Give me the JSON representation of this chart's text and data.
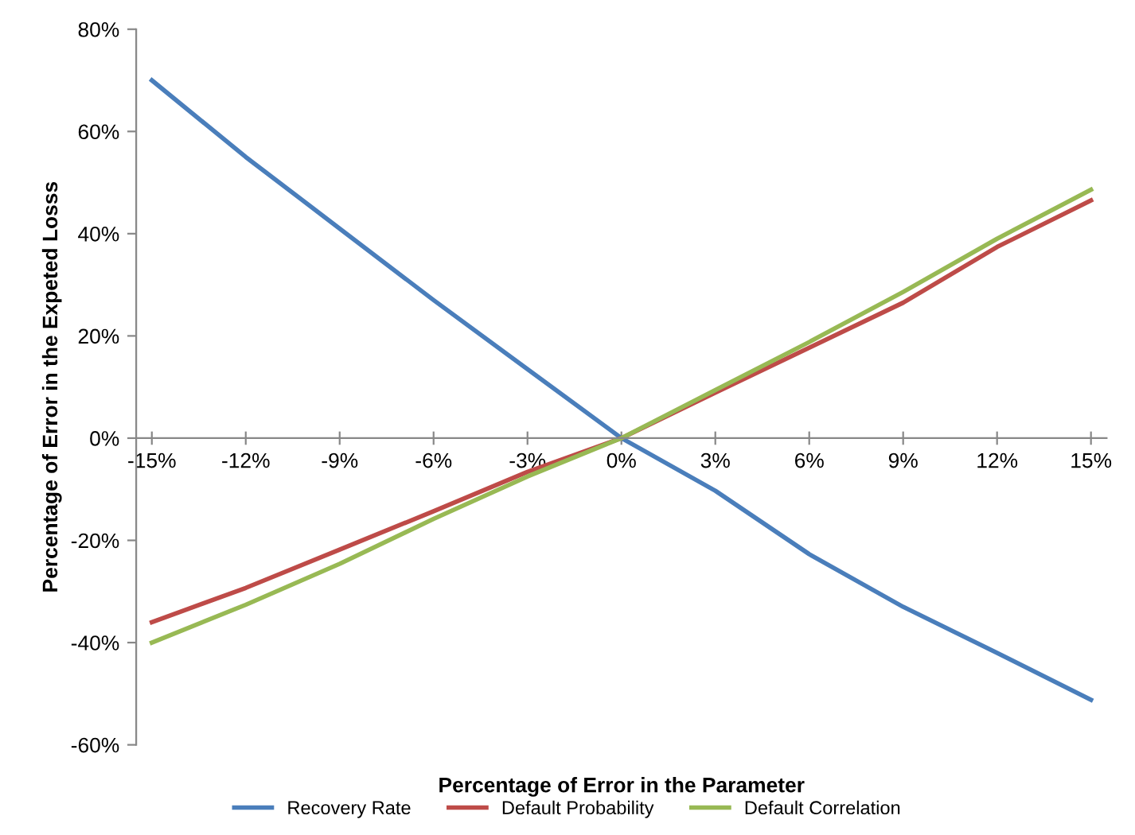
{
  "chart_data": {
    "type": "line",
    "xlabel": "Percentage of Error in the Parameter",
    "ylabel": "Percentage of Error in the Expeted Losss",
    "x": [
      -15,
      -12,
      -9,
      -6,
      -3,
      0,
      3,
      6,
      9,
      12,
      15
    ],
    "series": [
      {
        "name": "Recovery Rate",
        "color": "#4a7ebb",
        "values": [
          70,
          55,
          41,
          27,
          13.5,
          0,
          -10.3,
          -22.7,
          -33,
          -42,
          -51.2
        ]
      },
      {
        "name": "Default Probability",
        "color": "#be4b48",
        "values": [
          -36,
          -29.3,
          -21.8,
          -14.3,
          -6.6,
          0,
          8.9,
          17.7,
          26.5,
          37.4,
          46.5
        ]
      },
      {
        "name": "Default Correlation",
        "color": "#98b954",
        "values": [
          -40,
          -32.6,
          -24.6,
          -15.8,
          -7.5,
          0,
          9.4,
          18.8,
          28.6,
          39,
          48.6
        ]
      }
    ],
    "xlim": [
      -15.5,
      15.5
    ],
    "xticks": [
      {
        "value": -15,
        "label": "-15%"
      },
      {
        "value": -12,
        "label": "-12%"
      },
      {
        "value": -9,
        "label": "-9%"
      },
      {
        "value": -6,
        "label": "-6%"
      },
      {
        "value": -3,
        "label": "-3%"
      },
      {
        "value": 0,
        "label": "0%"
      },
      {
        "value": 3,
        "label": "3%"
      },
      {
        "value": 6,
        "label": "6%"
      },
      {
        "value": 9,
        "label": "9%"
      },
      {
        "value": 12,
        "label": "12%"
      },
      {
        "value": 15,
        "label": "15%"
      }
    ],
    "ylim": [
      -60,
      80
    ],
    "yticks": [
      {
        "value": -60,
        "label": "-60%"
      },
      {
        "value": -40,
        "label": "-40%"
      },
      {
        "value": -20,
        "label": "-20%"
      },
      {
        "value": 0,
        "label": "0%"
      },
      {
        "value": 20,
        "label": "20%"
      },
      {
        "value": 40,
        "label": "40%"
      },
      {
        "value": 60,
        "label": "60%"
      },
      {
        "value": 80,
        "label": "80%"
      }
    ],
    "grid": false,
    "legend": "bottom",
    "marker": "none",
    "line_style": "solid"
  }
}
